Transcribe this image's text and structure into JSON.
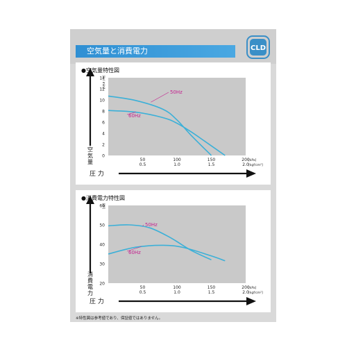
{
  "header": {
    "title": "空気量と消費電力",
    "logo_text": "CLD"
  },
  "chart_data": [
    {
      "type": "line",
      "title": "●空気量特性図",
      "ylabel": "空気量",
      "yunit": "[L / min]",
      "xlabel": "圧 力",
      "xunit_primary": "[kPa]",
      "xunit_secondary": "[kgf/cm²]",
      "x_ticks_primary": [
        "50",
        "100",
        "150",
        "200"
      ],
      "x_ticks_secondary": [
        "0.5",
        "1.0",
        "1.5",
        "2.0"
      ],
      "y_ticks": [
        "0",
        "2",
        "4",
        "6",
        "8",
        "10",
        "12",
        "14"
      ],
      "xlim": [
        0,
        200
      ],
      "ylim": [
        0,
        14
      ],
      "grid": false,
      "colors": {
        "series": "#3bb0d8",
        "label": "#c4208e",
        "plot_bg": "#c9c9c9"
      },
      "series": [
        {
          "name": "50Hz",
          "x": [
            0,
            40,
            80,
            100,
            120,
            150
          ],
          "y": [
            10.7,
            9.9,
            8.3,
            6.4,
            3.7,
            0
          ]
        },
        {
          "name": "60Hz",
          "x": [
            0,
            40,
            80,
            100,
            120,
            140,
            170
          ],
          "y": [
            8.1,
            7.8,
            6.8,
            5.8,
            4.3,
            2.6,
            0
          ]
        }
      ]
    },
    {
      "type": "line",
      "title": "●消費電力特性図",
      "ylabel": "消費電力",
      "yunit": "[W]",
      "xlabel": "圧 力",
      "xunit_primary": "[kPa]",
      "xunit_secondary": "[kgf/cm²]",
      "x_ticks_primary": [
        "50",
        "100",
        "150",
        "200"
      ],
      "x_ticks_secondary": [
        "0.5",
        "1.0",
        "1.5",
        "2.0"
      ],
      "y_ticks": [
        "20",
        "30",
        "40",
        "50",
        "60"
      ],
      "xlim": [
        0,
        200
      ],
      "ylim": [
        20,
        60
      ],
      "grid": false,
      "colors": {
        "series": "#3bb0d8",
        "label": "#c4208e",
        "plot_bg": "#c9c9c9"
      },
      "series": [
        {
          "name": "50Hz",
          "x": [
            0,
            30,
            60,
            90,
            120,
            150
          ],
          "y": [
            49.5,
            50,
            48.5,
            43.5,
            37,
            32
          ]
        },
        {
          "name": "60Hz",
          "x": [
            0,
            40,
            80,
            110,
            150,
            170
          ],
          "y": [
            35,
            38.5,
            39.5,
            38.3,
            34,
            31.5
          ]
        }
      ]
    }
  ],
  "footnote": "※特性図は参考値であり、保証値ではありません。"
}
